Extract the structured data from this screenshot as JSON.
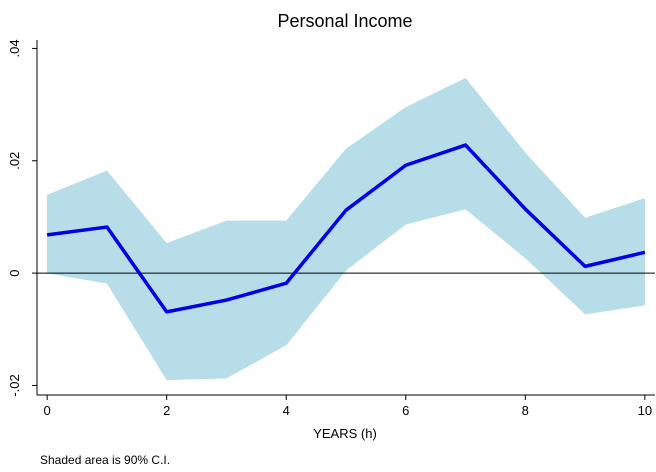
{
  "chart_data": {
    "type": "line",
    "title": "Personal Income",
    "x_label": "YEARS (h)",
    "note": "Shaded area is 90% C.I.",
    "x": [
      0,
      1,
      2,
      3,
      4,
      5,
      6,
      7,
      8,
      9,
      10
    ],
    "values": [
      0.0068,
      0.0082,
      -0.0069,
      -0.0048,
      -0.0018,
      0.0112,
      0.0192,
      0.0228,
      0.0114,
      0.0012,
      0.0037
    ],
    "ci_upper": [
      0.0139,
      0.0182,
      0.0053,
      0.0093,
      0.0093,
      0.0221,
      0.0295,
      0.0347,
      0.0214,
      0.0098,
      0.0133
    ],
    "ci_lower": [
      0.0,
      -0.0018,
      -0.019,
      -0.0187,
      -0.0128,
      0.0005,
      0.0087,
      0.0114,
      0.0027,
      -0.0073,
      -0.0057
    ],
    "color": "#0000e6",
    "band_color": "#b7dde8",
    "hline": 0,
    "xlim": [
      -0.17,
      10.17
    ],
    "xticks": [
      0,
      2,
      4,
      6,
      8,
      10
    ],
    "ylim": [
      -0.0217,
      0.0415
    ],
    "yticks": [
      {
        "value": -0.02,
        "label": "-.02"
      },
      {
        "value": 0,
        "label": "0"
      },
      {
        "value": 0.02,
        "label": ".02"
      },
      {
        "value": 0.04,
        "label": ".04"
      }
    ]
  }
}
